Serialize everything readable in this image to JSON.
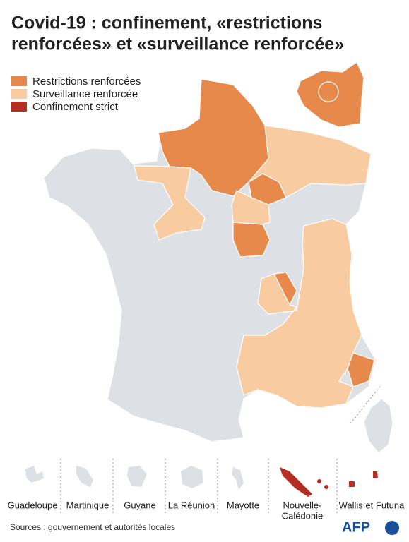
{
  "title": [
    "Covid-19 : confinement, «restrictions",
    "renforcées» et «surveillance renforcée»"
  ],
  "legend": {
    "items": [
      {
        "label": "Restrictions renforcées",
        "color": "#e8894c"
      },
      {
        "label": "Surveillance renforcée",
        "color": "#f8cba0"
      },
      {
        "label": "Confinement strict",
        "color": "#b52c20"
      }
    ]
  },
  "map": {
    "base_color": "#dde1e5"
  },
  "territories": [
    {
      "label": [
        "Guadeloupe"
      ],
      "color": "#dde1e5"
    },
    {
      "label": [
        "Martinique"
      ],
      "color": "#dde1e5"
    },
    {
      "label": [
        "Guyane"
      ],
      "color": "#dde1e5"
    },
    {
      "label": [
        "La Réunion"
      ],
      "color": "#dde1e5"
    },
    {
      "label": [
        "Mayotte"
      ],
      "color": "#dde1e5"
    },
    {
      "label": [
        "Nouvelle-",
        "Calédonie"
      ],
      "color": "#b52c20"
    },
    {
      "label": [
        "Wallis et Futuna"
      ],
      "color": "#b52c20"
    }
  ],
  "source": "Sources : gouvernement et autorités locales",
  "logo": "AFP"
}
